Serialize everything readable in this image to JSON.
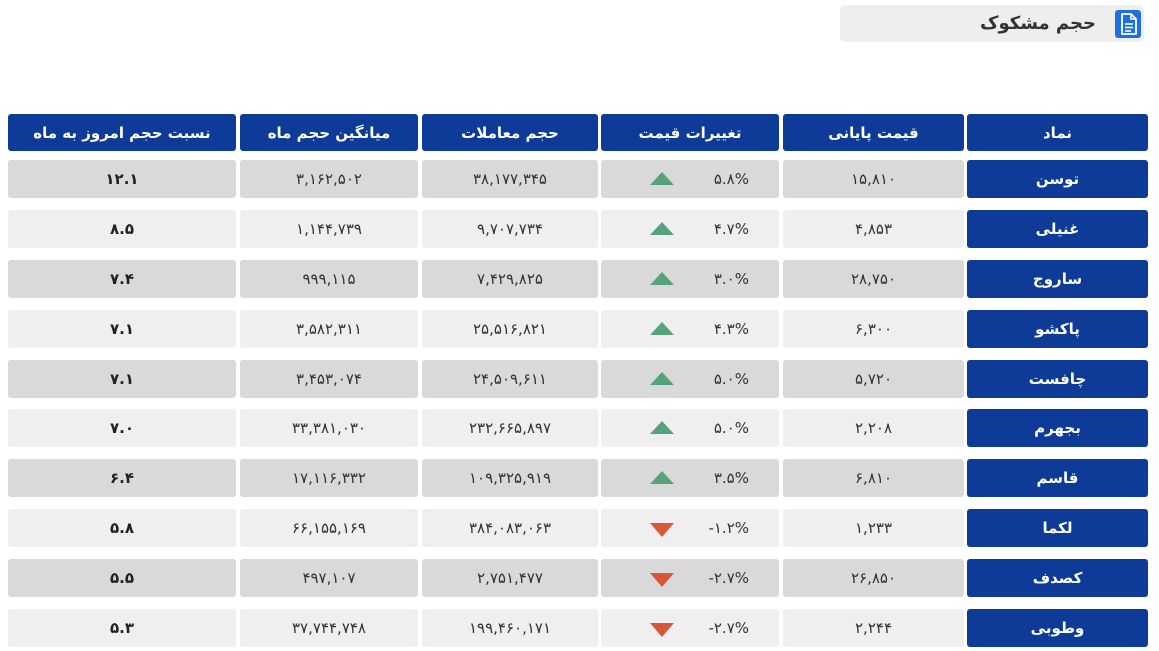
{
  "header": {
    "title": "حجم مشکوک",
    "icon": "document-icon"
  },
  "colors": {
    "header_bg": "#0d3b97",
    "row_dark": "#d9d9d9",
    "row_light": "#efefef",
    "up": "#57a27a",
    "down": "#d9563a"
  },
  "columns": {
    "symbol": "نماد",
    "close_price": "قیمت پایانی",
    "price_change": "تغییرات قیمت",
    "volume": "حجم معاملات",
    "avg_volume": "میانگین حجم ماه",
    "ratio": "نسبت حجم امروز به ماه"
  },
  "rows": [
    {
      "symbol": "توسن",
      "close_price": "۱۵,۸۱۰",
      "price_change": "۵.۸%",
      "direction": "up",
      "volume": "۳۸,۱۷۷,۳۴۵",
      "avg_volume": "۳,۱۶۲,۵۰۲",
      "ratio": "۱۲.۱"
    },
    {
      "symbol": "غنیلی",
      "close_price": "۴,۸۵۳",
      "price_change": "۴.۷%",
      "direction": "up",
      "volume": "۹,۷۰۷,۷۳۴",
      "avg_volume": "۱,۱۴۴,۷۳۹",
      "ratio": "۸.۵"
    },
    {
      "symbol": "ساروج",
      "close_price": "۲۸,۷۵۰",
      "price_change": "۳.۰%",
      "direction": "up",
      "volume": "۷,۴۲۹,۸۲۵",
      "avg_volume": "۹۹۹,۱۱۵",
      "ratio": "۷.۴"
    },
    {
      "symbol": "پاکشو",
      "close_price": "۶,۳۰۰",
      "price_change": "۴.۳%",
      "direction": "up",
      "volume": "۲۵,۵۱۶,۸۲۱",
      "avg_volume": "۳,۵۸۲,۳۱۱",
      "ratio": "۷.۱"
    },
    {
      "symbol": "چافست",
      "close_price": "۵,۷۲۰",
      "price_change": "۵.۰%",
      "direction": "up",
      "volume": "۲۴,۵۰۹,۶۱۱",
      "avg_volume": "۳,۴۵۳,۰۷۴",
      "ratio": "۷.۱"
    },
    {
      "symbol": "بجهرم",
      "close_price": "۲,۲۰۸",
      "price_change": "۵.۰%",
      "direction": "up",
      "volume": "۲۳۲,۶۶۵,۸۹۷",
      "avg_volume": "۳۳,۳۸۱,۰۳۰",
      "ratio": "۷.۰"
    },
    {
      "symbol": "قاسم",
      "close_price": "۶,۸۱۰",
      "price_change": "۳.۵%",
      "direction": "up",
      "volume": "۱۰۹,۳۲۵,۹۱۹",
      "avg_volume": "۱۷,۱۱۶,۳۳۲",
      "ratio": "۶.۴"
    },
    {
      "symbol": "لکما",
      "close_price": "۱,۲۳۳",
      "price_change": "-۱.۲%",
      "direction": "down",
      "volume": "۳۸۴,۰۸۳,۰۶۳",
      "avg_volume": "۶۶,۱۵۵,۱۶۹",
      "ratio": "۵.۸"
    },
    {
      "symbol": "کصدف",
      "close_price": "۲۶,۸۵۰",
      "price_change": "-۲.۷%",
      "direction": "down",
      "volume": "۲,۷۵۱,۴۷۷",
      "avg_volume": "۴۹۷,۱۰۷",
      "ratio": "۵.۵"
    },
    {
      "symbol": "وطوبی",
      "close_price": "۲,۲۴۴",
      "price_change": "-۲.۷%",
      "direction": "down",
      "volume": "۱۹۹,۴۶۰,۱۷۱",
      "avg_volume": "۳۷,۷۴۴,۷۴۸",
      "ratio": "۵.۳"
    }
  ]
}
